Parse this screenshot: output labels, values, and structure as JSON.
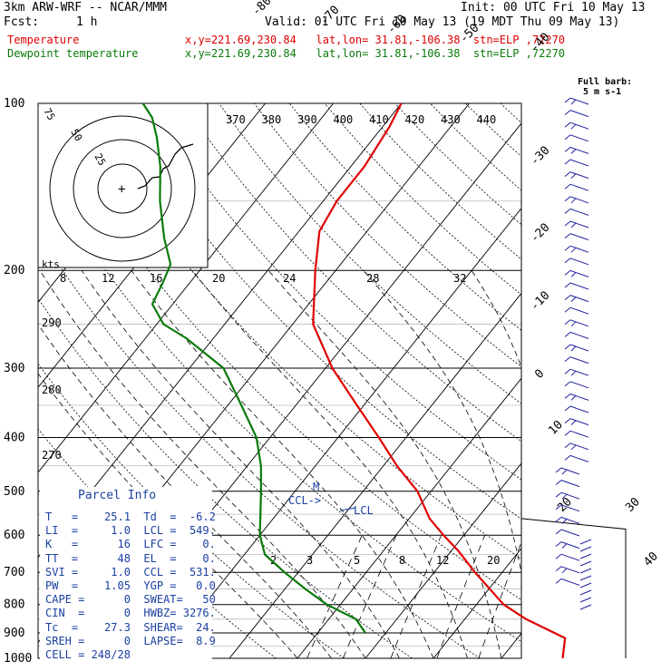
{
  "header": {
    "model": "3km ARW-WRF -- NCAR/MMM",
    "init": "Init: 00 UTC Fri 10 May 13",
    "fcst_label": "Fcst:",
    "fcst_value": "1 h",
    "valid": "Valid: 01 UTC Fri 10 May 13 (19 MDT Thu 09 May 13)",
    "temperature_label": "Temperature",
    "dewpoint_label": "Dewpoint temperature",
    "location_info": "x,y=221.69,230.84   lat,lon= 31.81,-106.38  stn=ELP ,72270"
  },
  "chart_data": {
    "type": "line",
    "kind": "skew-T log-p sounding",
    "y_axis": {
      "label": "pressure (hPa)",
      "scale": "log",
      "ticks": [
        100,
        200,
        300,
        400,
        500,
        600,
        700,
        800,
        900,
        1000
      ],
      "range": [
        1000,
        100
      ]
    },
    "isotherm_labels_top": [
      "-80",
      "-70",
      "-60",
      "-50",
      "-40"
    ],
    "isotherm_labels_right": [
      "-30",
      "-20",
      "-10",
      "0",
      "10",
      "20",
      "30",
      "40"
    ],
    "potential_temp_labels": [
      "370",
      "380",
      "390",
      "400",
      "410",
      "420",
      "430",
      "440"
    ],
    "mixing_ratio_labels_upper": [
      "8",
      "12",
      "16",
      "20",
      "24",
      "28",
      "32"
    ],
    "mixing_ratio_labels_lower": [
      "2",
      "3",
      "5",
      "8",
      "12",
      "20"
    ],
    "theta_e_labels": [
      "290",
      "280",
      "270"
    ],
    "hodograph": {
      "units_label": "kts",
      "ring_labels": [
        "75",
        "50",
        "25"
      ]
    },
    "full_barb_note": "Full barb:\n5 m s-1",
    "series": [
      {
        "name": "Temperature",
        "color": "#e00000",
        "points": [
          [
            1000,
            29
          ],
          [
            920,
            27
          ],
          [
            850,
            19
          ],
          [
            800,
            14
          ],
          [
            700,
            6
          ],
          [
            640,
            1
          ],
          [
            600,
            -3
          ],
          [
            560,
            -7
          ],
          [
            500,
            -12
          ],
          [
            450,
            -18
          ],
          [
            400,
            -24
          ],
          [
            350,
            -31
          ],
          [
            300,
            -39
          ],
          [
            250,
            -47
          ],
          [
            200,
            -53
          ],
          [
            170,
            -57
          ],
          [
            150,
            -58
          ],
          [
            130,
            -58
          ],
          [
            110,
            -59
          ],
          [
            100,
            -60
          ]
        ]
      },
      {
        "name": "Dewpoint temperature",
        "color": "#0a7a0a",
        "points": [
          [
            900,
            -3
          ],
          [
            850,
            -6
          ],
          [
            800,
            -12
          ],
          [
            750,
            -17
          ],
          [
            700,
            -22
          ],
          [
            650,
            -27
          ],
          [
            600,
            -30
          ],
          [
            500,
            -35
          ],
          [
            450,
            -38
          ],
          [
            400,
            -42
          ],
          [
            350,
            -48
          ],
          [
            300,
            -55
          ],
          [
            265,
            -64
          ],
          [
            250,
            -69
          ],
          [
            230,
            -73
          ],
          [
            210,
            -74
          ],
          [
            195,
            -75
          ],
          [
            175,
            -79
          ],
          [
            150,
            -84
          ],
          [
            130,
            -88
          ],
          [
            115,
            -92
          ],
          [
            106,
            -95
          ],
          [
            100,
            -98
          ]
        ]
      }
    ],
    "annotations": [
      "M",
      "CCL->",
      "LCL"
    ],
    "wind_barbs_column": "right"
  },
  "parcel_info": {
    "title": "Parcel Info",
    "rows": [
      "T   =    25.1  Td  =  -6.2",
      "LI  =     1.0  LCL =  549.",
      "K   =      16  LFC =    0.",
      "TT  =      48  EL  =    0.",
      "SVI =     1.0  CCL =  531.",
      "PW  =    1.05  YGP =   0.0",
      "CAPE =      0  SWEAT=   50",
      "CIN  =      0  HWBZ= 3276.",
      "Tc  =    27.3  SHEAR=  24.",
      "SREH =      0  LAPSE=  8.9",
      "CELL = 248/28"
    ]
  }
}
